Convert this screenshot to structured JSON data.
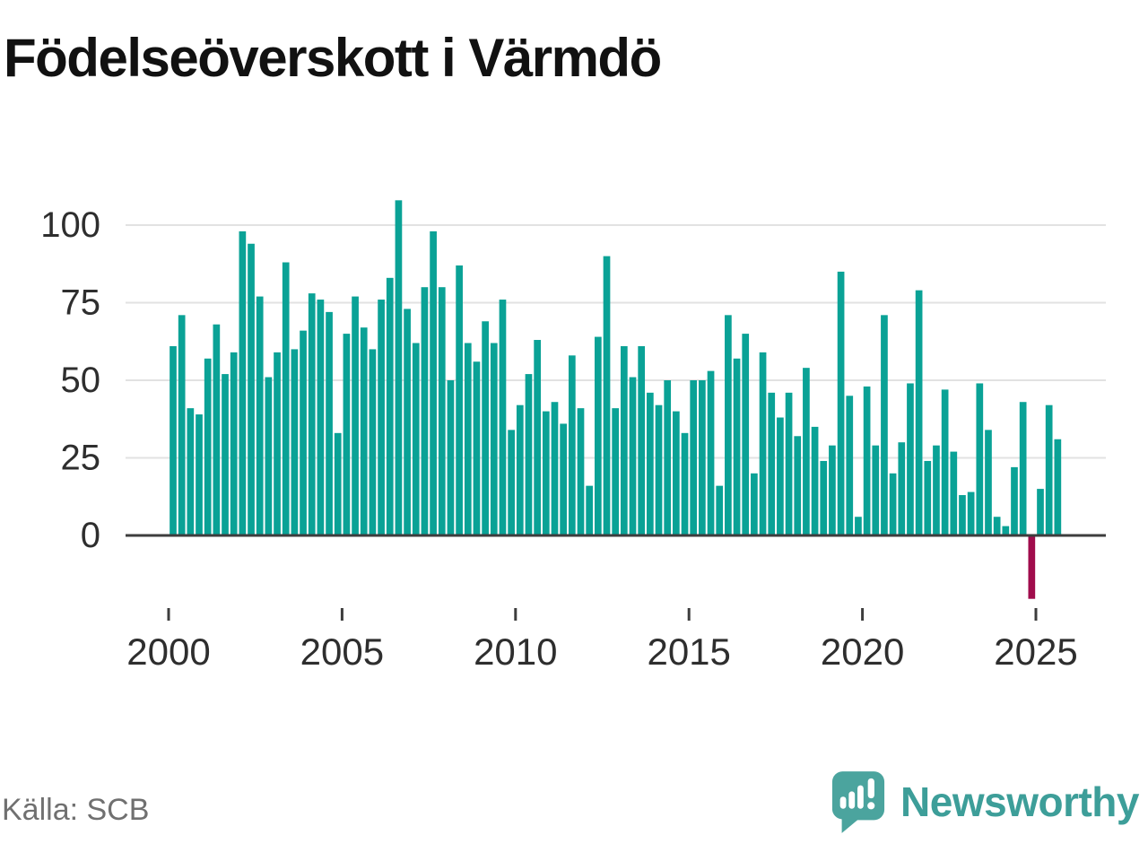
{
  "title": "Födelseöverskott i Värmdö",
  "source": "Källa: SCB",
  "logo": {
    "brand": "Newsworthy"
  },
  "colors": {
    "bar_teal": "#0aa296",
    "bar_negative": "#a00c4c",
    "gridline": "#e2e2e2",
    "axis_line": "#3d3d3d",
    "axis_text": "#2e2e2e",
    "title_text": "#111111",
    "source_text": "#707070",
    "logo_teal": "#4ba49e",
    "logo_text_teal": "#3d9e99"
  },
  "chart_data": {
    "type": "bar",
    "title": "Födelseöverskott i Värmdö",
    "frequency": "quarterly",
    "x_start": "2000-Q1",
    "x_end": "2025-Q3",
    "values": [
      61,
      71,
      41,
      39,
      57,
      68,
      52,
      59,
      98,
      94,
      77,
      51,
      59,
      88,
      60,
      66,
      78,
      76,
      72,
      33,
      65,
      77,
      67,
      60,
      76,
      83,
      108,
      73,
      62,
      80,
      98,
      80,
      50,
      87,
      62,
      56,
      69,
      62,
      76,
      34,
      42,
      52,
      63,
      40,
      43,
      36,
      58,
      41,
      16,
      64,
      90,
      41,
      61,
      51,
      61,
      46,
      42,
      50,
      40,
      33,
      50,
      50,
      53,
      16,
      71,
      57,
      65,
      20,
      59,
      46,
      38,
      46,
      32,
      54,
      35,
      24,
      29,
      85,
      45,
      6,
      48,
      29,
      71,
      20,
      30,
      49,
      79,
      24,
      29,
      47,
      27,
      13,
      14,
      49,
      34,
      6,
      3,
      22,
      43,
      -20,
      15,
      42,
      31
    ],
    "negative_highlight": {
      "quarter": "2024-Q4",
      "value": -20
    },
    "x_tick_labels": [
      "2000",
      "2005",
      "2010",
      "2015",
      "2020",
      "2025"
    ],
    "y_ticks": [
      0,
      25,
      50,
      75,
      100
    ],
    "y_tick_labels": [
      "0",
      "25",
      "50",
      "75",
      "100"
    ],
    "ylim": [
      -25,
      112
    ],
    "xlabel": "",
    "ylabel": "",
    "grid": "horizontal",
    "legend": "none"
  }
}
